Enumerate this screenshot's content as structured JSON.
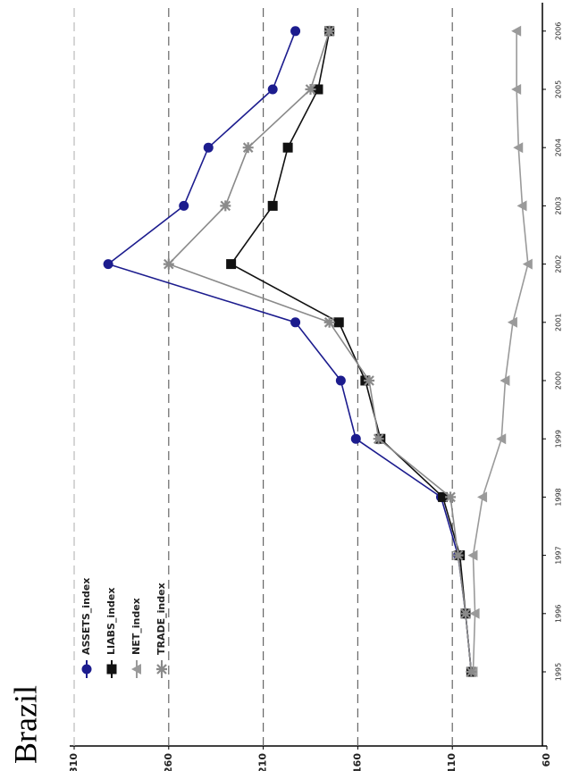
{
  "chart_data": {
    "type": "line",
    "title": "Brazil",
    "categories": [
      "1995",
      "1996",
      "1997",
      "1998",
      "1999",
      "2000",
      "2001",
      "2002",
      "2003",
      "2004",
      "2005",
      "2006"
    ],
    "series": [
      {
        "name": "ASSETS_index",
        "color": "#1c1c8e",
        "marker": "circle",
        "values": [
          100,
          103,
          107,
          116,
          161,
          169,
          193,
          292,
          252,
          239,
          205,
          193
        ]
      },
      {
        "name": "LIABS_index",
        "color": "#111111",
        "marker": "square",
        "values": [
          100,
          103,
          106,
          115,
          148,
          156,
          170,
          227,
          205,
          197,
          181,
          175
        ]
      },
      {
        "name": "NET_index",
        "color": "#9a9a9a",
        "marker": "triangle",
        "values": [
          99,
          98,
          99,
          94,
          84,
          82,
          78,
          70,
          73,
          75,
          76,
          76
        ]
      },
      {
        "name": "TRADE_index",
        "color": "#8a8a8a",
        "marker": "star",
        "values": [
          100,
          103,
          107,
          111,
          149,
          154,
          175,
          260,
          230,
          218,
          185,
          175
        ]
      }
    ],
    "ylim": [
      60,
      310
    ],
    "yticks": [
      60,
      110,
      160,
      210,
      260,
      310
    ],
    "grid": true,
    "legend": "upper-left"
  }
}
